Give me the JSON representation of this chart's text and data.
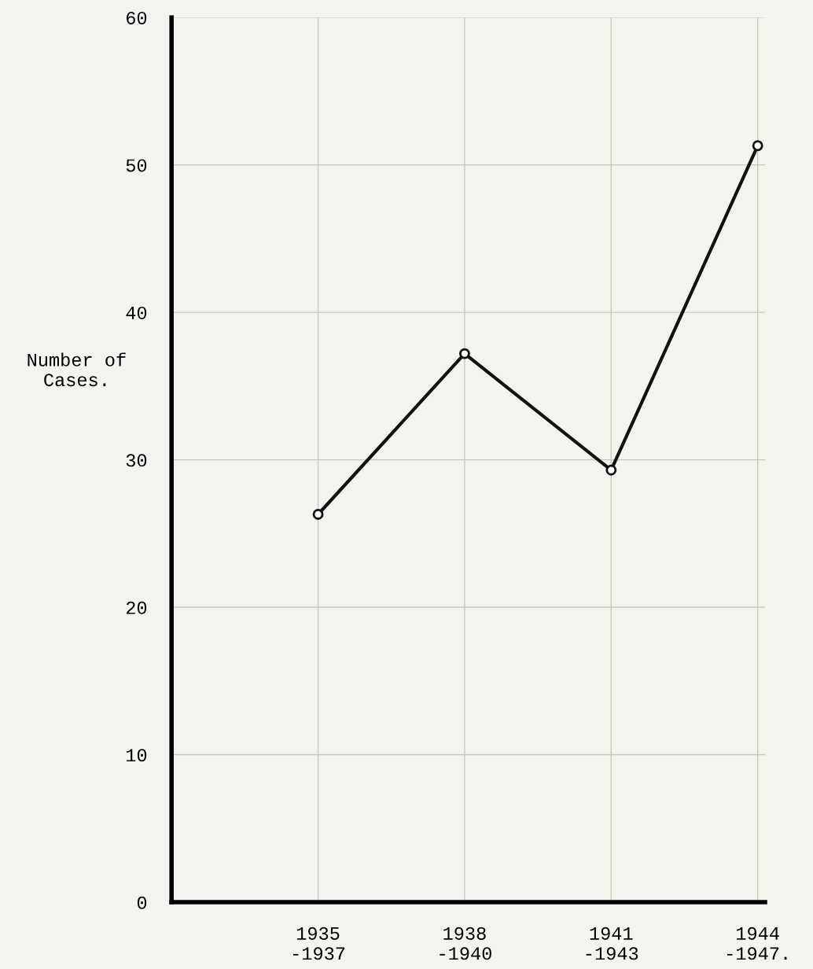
{
  "chart_data": {
    "type": "line",
    "ylabel": "Number of\nCases.",
    "categories": [
      "1935\n-1937",
      "1938\n-1940",
      "1941\n-1943",
      "1944\n-1947."
    ],
    "series": [
      {
        "color": "#111111",
        "values": [
          26.3,
          37.2,
          29.3,
          51.3
        ]
      }
    ],
    "ylim": [
      0,
      60
    ],
    "yticks": [
      0,
      10,
      20,
      30,
      40,
      50,
      60
    ],
    "grid": true,
    "marker": "circle",
    "line_style": "solid"
  }
}
